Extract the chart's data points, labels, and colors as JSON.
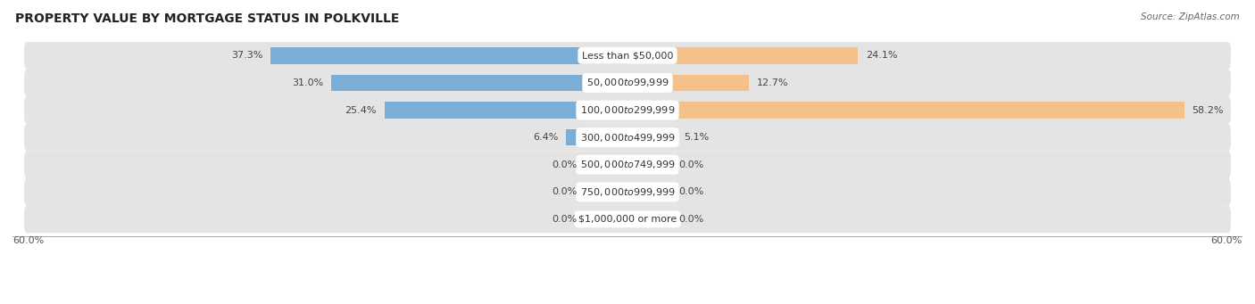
{
  "title": "PROPERTY VALUE BY MORTGAGE STATUS IN POLKVILLE",
  "source": "Source: ZipAtlas.com",
  "categories": [
    "Less than $50,000",
    "$50,000 to $99,999",
    "$100,000 to $299,999",
    "$300,000 to $499,999",
    "$500,000 to $749,999",
    "$750,000 to $999,999",
    "$1,000,000 or more"
  ],
  "without_mortgage": [
    37.3,
    31.0,
    25.4,
    6.4,
    0.0,
    0.0,
    0.0
  ],
  "with_mortgage": [
    24.1,
    12.7,
    58.2,
    5.1,
    0.0,
    0.0,
    0.0
  ],
  "zero_bar_stub": 4.5,
  "xlim": 60.0,
  "bar_color_without": "#7aaed6",
  "bar_color_with": "#f5c18a",
  "bg_row_color": "#e4e4e4",
  "bg_row_color_alt": "#ececec",
  "axis_label_left": "60.0%",
  "axis_label_right": "60.0%",
  "title_fontsize": 10,
  "label_fontsize": 8,
  "category_fontsize": 8
}
